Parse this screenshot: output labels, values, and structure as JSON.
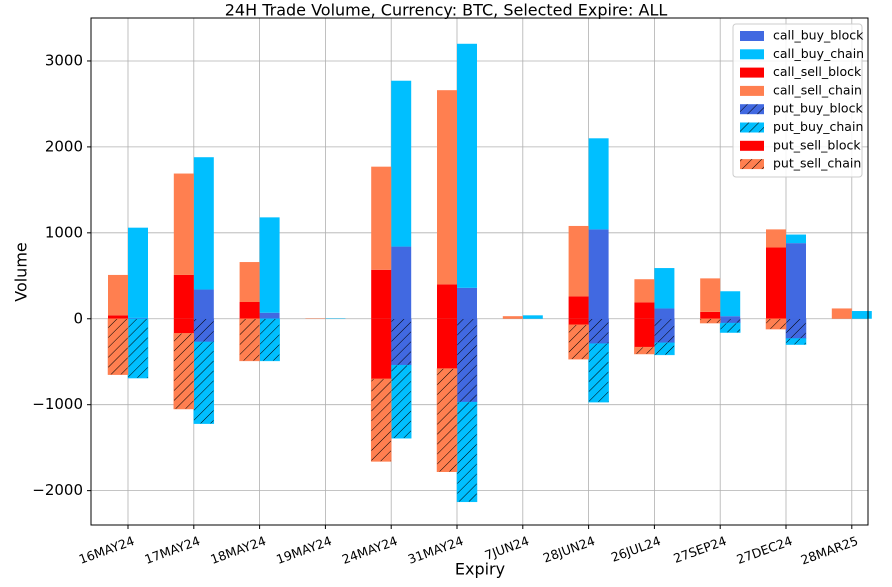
{
  "chart_data": {
    "type": "bar",
    "title": "24H Trade Volume, Currency: BTC, Selected Expire: ALL",
    "x_label": "Expiry",
    "y_label": "Volume",
    "categories": [
      "16MAY24",
      "17MAY24",
      "18MAY24",
      "19MAY24",
      "24MAY24",
      "31MAY24",
      "7JUN24",
      "28JUN24",
      "26JUL24",
      "27SEP24",
      "27DEC24",
      "28MAR25"
    ],
    "ylim": [
      -2400,
      3500
    ],
    "yticks": [
      {
        "value": -2000,
        "label": "−2000"
      },
      {
        "value": -1000,
        "label": "−1000"
      },
      0,
      1000,
      2000,
      3000
    ],
    "grid": true,
    "legend": "upper right",
    "series": [
      {
        "name": "call_buy_block",
        "color": "#4169e1",
        "stack": "buy",
        "hatch": false,
        "values": [
          10,
          340,
          70,
          0,
          840,
          360,
          0,
          1040,
          120,
          30,
          880,
          0
        ]
      },
      {
        "name": "call_buy_chain",
        "color": "#00bfff",
        "stack": "buy",
        "hatch": false,
        "values": [
          1050,
          1540,
          1110,
          5,
          1930,
          2840,
          40,
          1060,
          470,
          290,
          100,
          90
        ]
      },
      {
        "name": "call_sell_block",
        "color": "#ff0000",
        "stack": "sell",
        "hatch": false,
        "values": [
          40,
          510,
          195,
          0,
          570,
          400,
          0,
          260,
          190,
          80,
          830,
          0
        ]
      },
      {
        "name": "call_sell_chain",
        "color": "#ff7f50",
        "stack": "sell",
        "hatch": false,
        "values": [
          470,
          1180,
          465,
          5,
          1200,
          2260,
          30,
          820,
          270,
          390,
          210,
          120
        ]
      },
      {
        "name": "put_buy_block",
        "color": "#4169e1",
        "stack": "buy",
        "hatch": true,
        "values": [
          0,
          -270,
          0,
          0,
          -540,
          -970,
          0,
          -290,
          -280,
          -50,
          -230,
          0
        ]
      },
      {
        "name": "put_buy_chain",
        "color": "#00bfff",
        "stack": "buy",
        "hatch": true,
        "values": [
          -690,
          -950,
          -490,
          0,
          -850,
          -1160,
          0,
          -680,
          -140,
          -110,
          -70,
          0
        ]
      },
      {
        "name": "put_sell_block",
        "color": "#ff0000",
        "stack": "sell",
        "hatch": false,
        "values": [
          0,
          -170,
          0,
          0,
          -700,
          -580,
          0,
          -70,
          -330,
          0,
          0,
          0
        ]
      },
      {
        "name": "put_sell_chain",
        "color": "#ff7f50",
        "stack": "sell",
        "hatch": true,
        "values": [
          -650,
          -880,
          -490,
          0,
          -960,
          -1200,
          0,
          -400,
          -80,
          -50,
          -120,
          0
        ]
      }
    ]
  }
}
